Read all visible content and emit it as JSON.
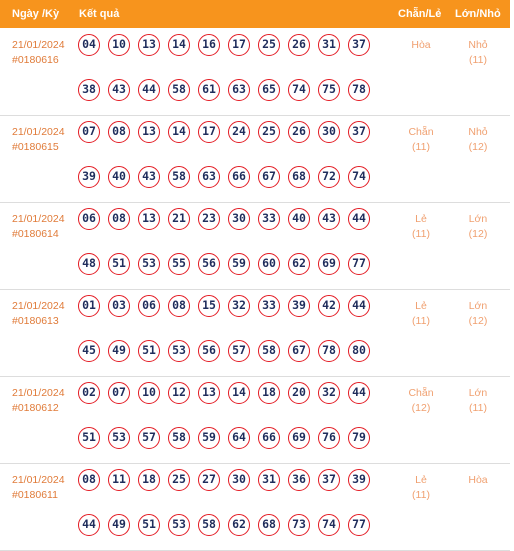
{
  "header": {
    "date_col": "Ngày /Kỳ",
    "result_col": "Kết quả",
    "even_odd_col": "Chẵn/Lẻ",
    "big_small_col": "Lớn/Nhỏ",
    "accent_color": "#f7941d",
    "ball_border_color": "#e31b23",
    "number_color": "#1f2d5c"
  },
  "draws": [
    {
      "date": "21/01/2024",
      "id": "#0180616",
      "numbers": [
        "04",
        "10",
        "13",
        "14",
        "16",
        "17",
        "25",
        "26",
        "31",
        "37",
        "38",
        "43",
        "44",
        "58",
        "61",
        "63",
        "65",
        "74",
        "75",
        "78"
      ],
      "even_odd": "Hòa",
      "even_odd_count": "",
      "big_small": "Nhỏ",
      "big_small_count": "(11)"
    },
    {
      "date": "21/01/2024",
      "id": "#0180615",
      "numbers": [
        "07",
        "08",
        "13",
        "14",
        "17",
        "24",
        "25",
        "26",
        "30",
        "37",
        "39",
        "40",
        "43",
        "58",
        "63",
        "66",
        "67",
        "68",
        "72",
        "74"
      ],
      "even_odd": "Chẵn",
      "even_odd_count": "(11)",
      "big_small": "Nhỏ",
      "big_small_count": "(12)"
    },
    {
      "date": "21/01/2024",
      "id": "#0180614",
      "numbers": [
        "06",
        "08",
        "13",
        "21",
        "23",
        "30",
        "33",
        "40",
        "43",
        "44",
        "48",
        "51",
        "53",
        "55",
        "56",
        "59",
        "60",
        "62",
        "69",
        "77"
      ],
      "even_odd": "Lẻ",
      "even_odd_count": "(11)",
      "big_small": "Lớn",
      "big_small_count": "(12)"
    },
    {
      "date": "21/01/2024",
      "id": "#0180613",
      "numbers": [
        "01",
        "03",
        "06",
        "08",
        "15",
        "32",
        "33",
        "39",
        "42",
        "44",
        "45",
        "49",
        "51",
        "53",
        "56",
        "57",
        "58",
        "67",
        "78",
        "80"
      ],
      "even_odd": "Lẻ",
      "even_odd_count": "(11)",
      "big_small": "Lớn",
      "big_small_count": "(12)"
    },
    {
      "date": "21/01/2024",
      "id": "#0180612",
      "numbers": [
        "02",
        "07",
        "10",
        "12",
        "13",
        "14",
        "18",
        "20",
        "32",
        "44",
        "51",
        "53",
        "57",
        "58",
        "59",
        "64",
        "66",
        "69",
        "76",
        "79"
      ],
      "even_odd": "Chẵn",
      "even_odd_count": "(12)",
      "big_small": "Lớn",
      "big_small_count": "(11)"
    },
    {
      "date": "21/01/2024",
      "id": "#0180611",
      "numbers": [
        "08",
        "11",
        "18",
        "25",
        "27",
        "30",
        "31",
        "36",
        "37",
        "39",
        "44",
        "49",
        "51",
        "53",
        "58",
        "62",
        "68",
        "73",
        "74",
        "77"
      ],
      "even_odd": "Lẻ",
      "even_odd_count": "(11)",
      "big_small": "Hòa",
      "big_small_count": ""
    }
  ]
}
